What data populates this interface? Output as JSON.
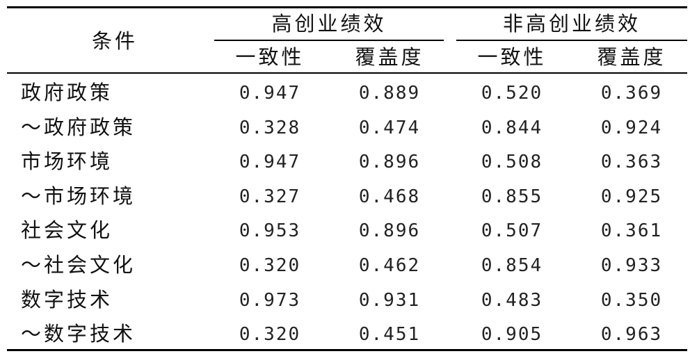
{
  "header": {
    "condition": "条件",
    "group_high": "高创业绩效",
    "group_nonhigh": "非高创业绩效",
    "consistency": "一致性",
    "coverage": "覆盖度"
  },
  "rows": [
    {
      "label": "政府政策",
      "values": [
        "0.947",
        "0.889",
        "0.520",
        "0.369"
      ]
    },
    {
      "label": "～政府政策",
      "values": [
        "0.328",
        "0.474",
        "0.844",
        "0.924"
      ]
    },
    {
      "label": "市场环境",
      "values": [
        "0.947",
        "0.896",
        "0.508",
        "0.363"
      ]
    },
    {
      "label": "～市场环境",
      "values": [
        "0.327",
        "0.468",
        "0.855",
        "0.925"
      ]
    },
    {
      "label": "社会文化",
      "values": [
        "0.953",
        "0.896",
        "0.507",
        "0.361"
      ]
    },
    {
      "label": "～社会文化",
      "values": [
        "0.320",
        "0.462",
        "0.854",
        "0.933"
      ]
    },
    {
      "label": "数字技术",
      "values": [
        "0.973",
        "0.931",
        "0.483",
        "0.350"
      ]
    },
    {
      "label": "～数字技术",
      "values": [
        "0.320",
        "0.451",
        "0.905",
        "0.963"
      ]
    }
  ]
}
